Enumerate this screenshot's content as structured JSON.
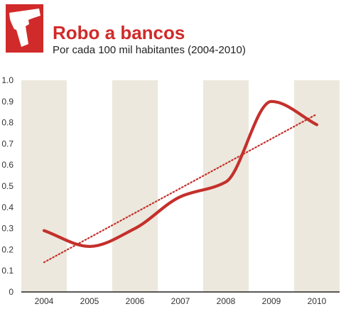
{
  "colors": {
    "accent": "#d12a2a",
    "trend_line": "#c4302b",
    "band": "#ece8dd",
    "axis": "#222222",
    "tick_text": "#333333"
  },
  "chart_data": {
    "type": "line",
    "title": "Robo a bancos",
    "subtitle": "Por cada 100 mil habitantes (2004-2010)",
    "icon": "pistol-icon",
    "categories": [
      "2004",
      "2005",
      "2006",
      "2007",
      "2008",
      "2009",
      "2010"
    ],
    "y_ticks": [
      "0",
      "0.1",
      "0.2",
      "0.3",
      "0.4",
      "0.5",
      "0.6",
      "0.7",
      "0.8",
      "0.9",
      "1.0"
    ],
    "ylim": [
      0,
      1.0
    ],
    "series": [
      {
        "values": [
          0.29,
          0.215,
          0.3,
          0.45,
          0.52,
          0.9,
          0.79
        ],
        "style": "solid-smooth"
      }
    ],
    "trendline": {
      "style": "dotted",
      "start": 0.14,
      "end": 0.84
    },
    "grid": false,
    "banded_columns": true,
    "legend": "none"
  }
}
